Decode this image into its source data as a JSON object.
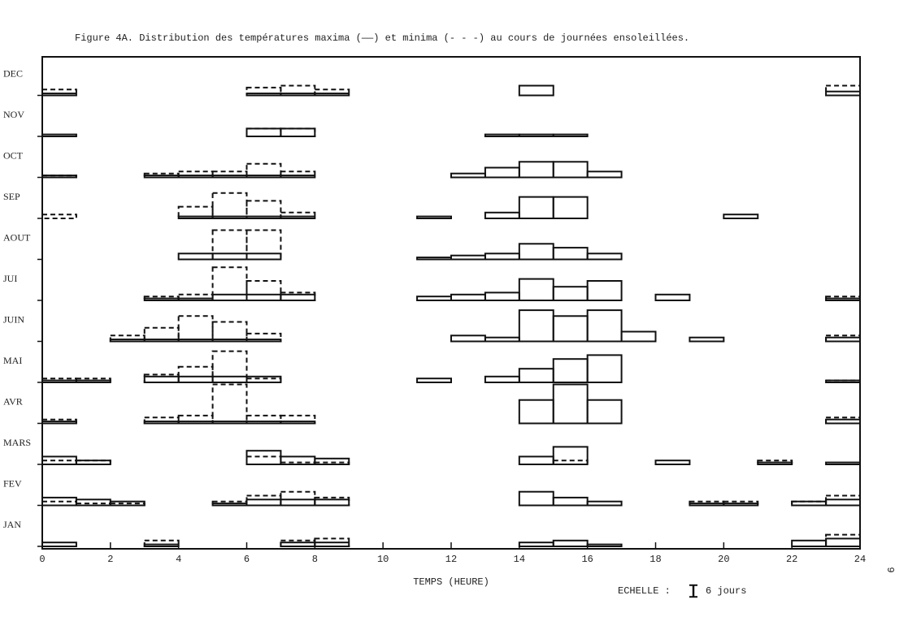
{
  "chart_data": {
    "type": "step-histogram",
    "title": "Figure 4A. Distribution des températures maxima (——) et minima (- - -) au cours de journées ensoleillées.",
    "x_label": "TEMPS (HEURE)",
    "scale_prefix": "ECHELLE :",
    "scale": {
      "value": 6,
      "label": "6 jours"
    },
    "page_number": "9",
    "xlim": [
      0,
      24
    ],
    "xticks": [
      0,
      2,
      4,
      6,
      8,
      10,
      12,
      14,
      16,
      18,
      20,
      22,
      24
    ],
    "bin_width": 1,
    "series_styles": [
      {
        "key": "max",
        "dashed": false,
        "color": "#111111"
      },
      {
        "key": "min",
        "dashed": true,
        "color": "#111111"
      }
    ],
    "rows": [
      {
        "name": "DEC",
        "max": {
          "x": [
            0,
            6,
            7,
            8,
            14,
            23
          ],
          "values": [
            1,
            1,
            1,
            1,
            5,
            2
          ]
        },
        "min": {
          "x": [
            0,
            6,
            7,
            8,
            23
          ],
          "values": [
            3,
            4,
            5,
            3,
            5
          ]
        }
      },
      {
        "name": "NOV",
        "max": {
          "x": [
            0,
            6,
            7,
            13,
            14,
            15
          ],
          "values": [
            1,
            4,
            4,
            1,
            1,
            1
          ]
        },
        "min": {
          "x": [
            6,
            7
          ],
          "values": [
            4,
            4
          ]
        }
      },
      {
        "name": "OCT",
        "max": {
          "x": [
            0,
            3,
            4,
            5,
            6,
            7,
            12,
            13,
            14,
            15,
            16
          ],
          "values": [
            1,
            1,
            1,
            1,
            1,
            1,
            2,
            5,
            8,
            8,
            3
          ]
        },
        "min": {
          "x": [
            0,
            3,
            4,
            5,
            6,
            7
          ],
          "values": [
            1,
            2,
            3,
            3,
            7,
            3
          ]
        }
      },
      {
        "name": "SEP",
        "max": {
          "x": [
            4,
            5,
            6,
            7,
            11,
            13,
            14,
            15,
            20
          ],
          "values": [
            1,
            1,
            1,
            1,
            1,
            3,
            11,
            11,
            2
          ]
        },
        "min": {
          "x": [
            0,
            4,
            5,
            6,
            7
          ],
          "values": [
            2,
            6,
            13,
            9,
            3
          ]
        }
      },
      {
        "name": "AOUT",
        "max": {
          "x": [
            4,
            5,
            6,
            11,
            12,
            13,
            14,
            15,
            16
          ],
          "values": [
            3,
            3,
            3,
            1,
            2,
            3,
            8,
            6,
            3
          ]
        },
        "min": {
          "x": [
            5,
            6
          ],
          "values": [
            15,
            15
          ]
        }
      },
      {
        "name": "JUI",
        "max": {
          "x": [
            3,
            4,
            5,
            6,
            7,
            11,
            12,
            13,
            14,
            15,
            16,
            18,
            23
          ],
          "values": [
            1,
            1,
            3,
            3,
            3,
            2,
            3,
            4,
            11,
            7,
            10,
            3,
            1
          ]
        },
        "min": {
          "x": [
            3,
            4,
            5,
            6,
            7,
            23
          ],
          "values": [
            2,
            3,
            17,
            10,
            4,
            2
          ]
        }
      },
      {
        "name": "JUIN",
        "max": {
          "x": [
            2,
            3,
            4,
            5,
            6,
            12,
            13,
            14,
            15,
            16,
            17,
            19,
            23
          ],
          "values": [
            1,
            1,
            1,
            1,
            1,
            3,
            2,
            16,
            13,
            16,
            5,
            2,
            2
          ]
        },
        "min": {
          "x": [
            2,
            3,
            4,
            5,
            6,
            23
          ],
          "values": [
            3,
            7,
            13,
            10,
            4,
            3
          ]
        }
      },
      {
        "name": "MAI",
        "max": {
          "x": [
            0,
            1,
            3,
            4,
            5,
            6,
            11,
            13,
            14,
            15,
            16,
            23
          ],
          "values": [
            1,
            1,
            3,
            3,
            3,
            3,
            2,
            3,
            7,
            12,
            14,
            1
          ]
        },
        "min": {
          "x": [
            0,
            1,
            3,
            4,
            5,
            6,
            23
          ],
          "values": [
            2,
            2,
            4,
            8,
            16,
            2,
            1
          ]
        }
      },
      {
        "name": "AVR",
        "max": {
          "x": [
            0,
            3,
            4,
            5,
            6,
            7,
            14,
            15,
            16,
            23
          ],
          "values": [
            1,
            1,
            1,
            1,
            1,
            1,
            12,
            20,
            12,
            2
          ]
        },
        "min": {
          "x": [
            0,
            3,
            4,
            5,
            6,
            7,
            23
          ],
          "values": [
            2,
            3,
            4,
            20,
            4,
            4,
            3
          ]
        }
      },
      {
        "name": "MARS",
        "max": {
          "x": [
            0,
            1,
            6,
            7,
            8,
            14,
            15,
            18,
            21,
            23
          ],
          "values": [
            4,
            2,
            7,
            4,
            3,
            4,
            9,
            2,
            1,
            1
          ]
        },
        "min": {
          "x": [
            0,
            1,
            6,
            7,
            8,
            15,
            21
          ],
          "values": [
            2,
            2,
            4,
            1,
            1,
            2,
            2
          ]
        }
      },
      {
        "name": "FEV",
        "max": {
          "x": [
            0,
            1,
            2,
            5,
            6,
            7,
            8,
            14,
            15,
            16,
            19,
            20,
            22,
            23
          ],
          "values": [
            4,
            3,
            2,
            1,
            3,
            3,
            3,
            7,
            4,
            2,
            1,
            1,
            2,
            3
          ]
        },
        "min": {
          "x": [
            0,
            1,
            2,
            5,
            6,
            7,
            8,
            19,
            20,
            22,
            23
          ],
          "values": [
            2,
            1,
            1,
            2,
            5,
            7,
            4,
            2,
            2,
            2,
            5
          ]
        }
      },
      {
        "name": "JAN",
        "max": {
          "x": [
            0,
            3,
            7,
            8,
            14,
            15,
            16,
            22,
            23
          ],
          "values": [
            2,
            1,
            2,
            2,
            2,
            3,
            1,
            3,
            4
          ]
        },
        "min": {
          "x": [
            3,
            7,
            8,
            23
          ],
          "values": [
            3,
            3,
            4,
            6
          ]
        }
      }
    ]
  }
}
